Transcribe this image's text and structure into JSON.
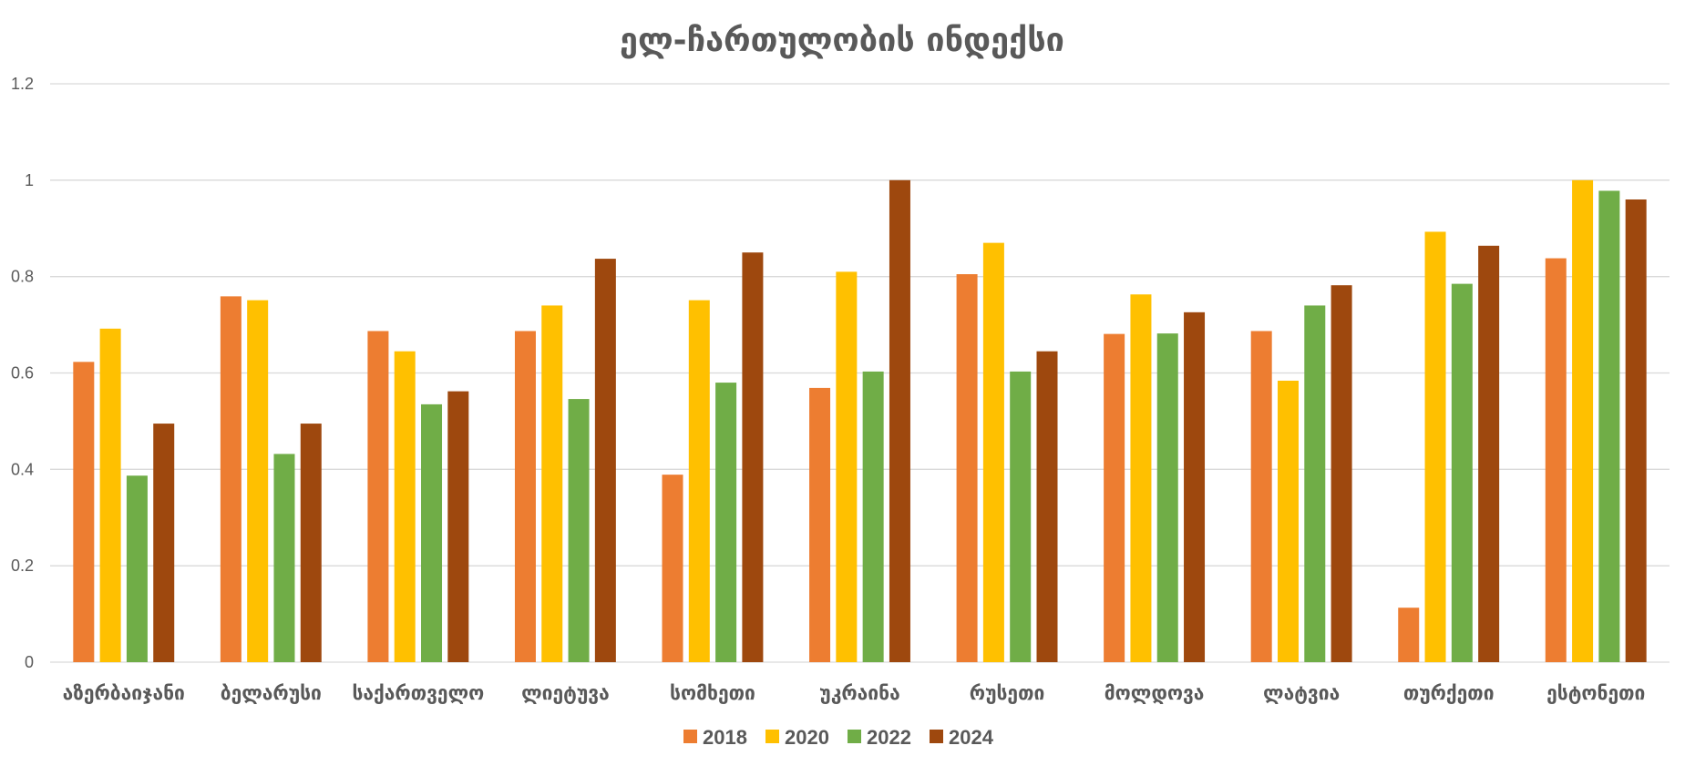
{
  "chart_data": {
    "type": "bar",
    "title": "ელ-ჩართულობის ინდექსი",
    "ylim": [
      0,
      1.2
    ],
    "yticks": [
      "0",
      "0.2",
      "0.4",
      "0.6",
      "0.8",
      "1",
      "1.2"
    ],
    "grid": true,
    "legend_position": "bottom",
    "categories": [
      "აზერბაიჯანი",
      "ბელარუსი",
      "საქართველო",
      "ლიეტუვა",
      "სომხეთი",
      "უკრაინა",
      "რუსეთი",
      "მოლდოვა",
      "ლატვია",
      "თურქეთი",
      "ესტონეთი"
    ],
    "series": [
      {
        "name": "2018",
        "color": "#ED7D31",
        "values": [
          0.623,
          0.759,
          0.687,
          0.687,
          0.389,
          0.569,
          0.805,
          0.681,
          0.687,
          0.113,
          0.838
        ]
      },
      {
        "name": "2020",
        "color": "#FFC000",
        "values": [
          0.692,
          0.751,
          0.645,
          0.74,
          0.751,
          0.81,
          0.87,
          0.763,
          0.584,
          0.893,
          1.0
        ]
      },
      {
        "name": "2022",
        "color": "#70AD47",
        "values": [
          0.387,
          0.432,
          0.535,
          0.546,
          0.58,
          0.603,
          0.603,
          0.682,
          0.74,
          0.785,
          0.978
        ]
      },
      {
        "name": "2024",
        "color": "#9E480E",
        "values": [
          0.495,
          0.495,
          0.562,
          0.837,
          0.85,
          1.0,
          0.645,
          0.726,
          0.782,
          0.864,
          0.96
        ]
      }
    ]
  }
}
